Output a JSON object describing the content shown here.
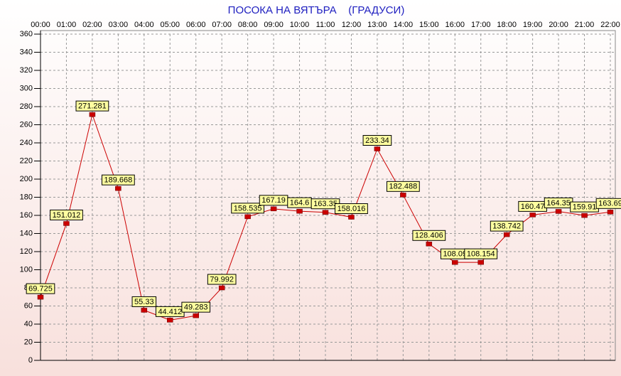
{
  "chart_data": {
    "type": "line",
    "title": "ПОСОКА НА ВЯТЪРА    (ГРАДУСИ)",
    "categories": [
      "00:00",
      "01:00",
      "02:00",
      "03:00",
      "04:00",
      "05:00",
      "06:00",
      "07:00",
      "08:00",
      "09:00",
      "10:00",
      "11:00",
      "12:00",
      "13:00",
      "14:00",
      "15:00",
      "16:00",
      "17:00",
      "18:00",
      "19:00",
      "20:00",
      "21:00",
      "22:00"
    ],
    "series": [
      {
        "color": "#cc0000",
        "values": [
          69.725,
          151.012,
          271.281,
          189.668,
          55.33,
          44.412,
          49.283,
          79.992,
          158.535,
          167.19,
          164.6,
          163.35,
          158.016,
          233.34,
          182.488,
          128.406,
          108.09,
          108.154,
          138.742,
          160.47,
          164.35,
          159.91,
          163.69
        ]
      }
    ],
    "ylim": [
      0,
      360
    ],
    "yticks": [
      0,
      20,
      40,
      60,
      80,
      100,
      120,
      140,
      160,
      180,
      200,
      220,
      240,
      260,
      280,
      300,
      320,
      340,
      360
    ],
    "grid": true
  }
}
